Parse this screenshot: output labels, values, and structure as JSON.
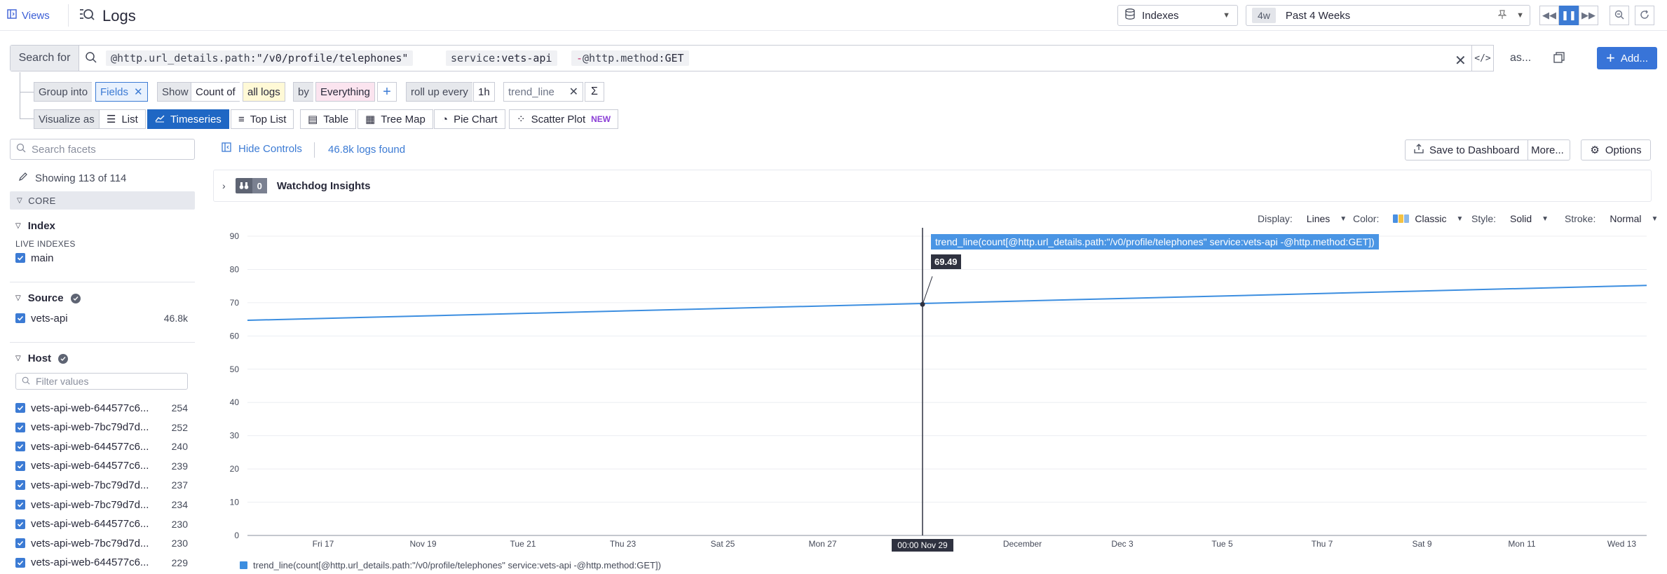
{
  "topbar": {
    "views_label": "Views",
    "title": "Logs",
    "index_selector": "Indexes",
    "time_badge": "4w",
    "time_label": "Past 4 Weeks"
  },
  "search": {
    "prefix": "Search for",
    "tokens": [
      {
        "key": "@http.url_details.path",
        "value": "\"/v0/profile/telephones\""
      },
      {
        "key": "service",
        "value": "vets-api"
      },
      {
        "neg": "-",
        "key": "@http.method",
        "value": "GET"
      }
    ],
    "as_label": "as...",
    "add_label": "Add..."
  },
  "group": {
    "group_into": "Group into",
    "fields": "Fields",
    "show": "Show",
    "count_of": "Count of",
    "all_logs": "all logs",
    "by": "by",
    "everything": "Everything",
    "rollup": "roll up every",
    "rollup_val": "1h",
    "formula": "trend_line"
  },
  "visualize": {
    "label": "Visualize as",
    "options": [
      "List",
      "Timeseries",
      "Top List",
      "Table",
      "Tree Map",
      "Pie Chart",
      "Scatter Plot"
    ],
    "selected": "Timeseries",
    "new_badge": "NEW"
  },
  "facets": {
    "search_placeholder": "Search facets",
    "showing": "Showing 113 of 114",
    "core": "CORE",
    "index": {
      "title": "Index",
      "sub": "LIVE INDEXES",
      "items": [
        {
          "label": "main"
        }
      ]
    },
    "source": {
      "title": "Source",
      "items": [
        {
          "label": "vets-api",
          "count": "46.8k"
        }
      ]
    },
    "host": {
      "title": "Host",
      "filter_placeholder": "Filter values",
      "items": [
        {
          "label": "vets-api-web-644577c6...",
          "count": "254"
        },
        {
          "label": "vets-api-web-7bc79d7d...",
          "count": "252"
        },
        {
          "label": "vets-api-web-644577c6...",
          "count": "240"
        },
        {
          "label": "vets-api-web-644577c6...",
          "count": "239"
        },
        {
          "label": "vets-api-web-7bc79d7d...",
          "count": "237"
        },
        {
          "label": "vets-api-web-7bc79d7d...",
          "count": "234"
        },
        {
          "label": "vets-api-web-644577c6...",
          "count": "230"
        },
        {
          "label": "vets-api-web-7bc79d7d...",
          "count": "230"
        },
        {
          "label": "vets-api-web-644577c6...",
          "count": "229"
        }
      ]
    }
  },
  "controls": {
    "hide_controls": "Hide Controls",
    "logs_found": "46.8k logs found",
    "save": "Save to Dashboard",
    "more": "More...",
    "options": "Options"
  },
  "watchdog": {
    "count": "0",
    "title": "Watchdog Insights"
  },
  "display": {
    "display_label": "Display:",
    "display_val": "Lines",
    "color_label": "Color:",
    "color_val": "Classic",
    "style_label": "Style:",
    "style_val": "Solid",
    "stroke_label": "Stroke:",
    "stroke_val": "Normal"
  },
  "colors": {
    "accent": "#3c7bd4",
    "series": "#3c8ee0"
  },
  "chart_data": {
    "type": "line",
    "ylim": [
      0,
      90
    ],
    "y_ticks": [
      0,
      10,
      20,
      30,
      40,
      50,
      60,
      70,
      80,
      90
    ],
    "x_ticks": [
      "Fri 17",
      "Nov 19",
      "Tue 21",
      "Thu 23",
      "Sat 25",
      "Mon 27",
      "00:00 Nov 29",
      "December",
      "Dec 3",
      "Tue 5",
      "Thu 7",
      "Sat 9",
      "Mon 11",
      "Wed 13"
    ],
    "series": [
      {
        "name": "trend_line(count[@http.url_details.path:\"/v0/profile/telephones\" service:vets-api -@http.method:GET])",
        "x": [
          "start",
          "Wed 13 end"
        ],
        "values": [
          64.7,
          75.2
        ]
      }
    ],
    "hover": {
      "x": "00:00 Nov 29",
      "value": "69.49"
    },
    "grid": true,
    "legend": "bottom-left"
  }
}
